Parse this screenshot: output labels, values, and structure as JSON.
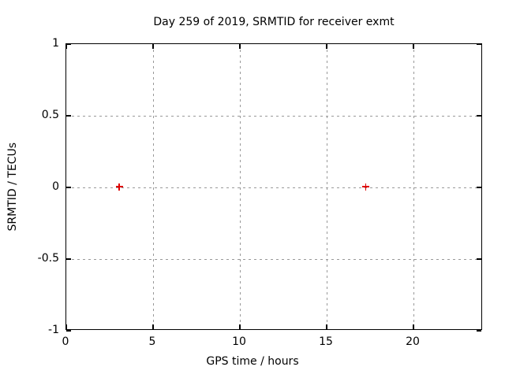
{
  "window": {
    "background": "#ffffff",
    "frame_color": "#000000",
    "grid_color": "#999999",
    "text_color": "#000000"
  },
  "chart_data": {
    "type": "scatter",
    "title": "Day 259 of 2019, SRMTID for receiver exmt",
    "xlabel": "GPS time / hours",
    "ylabel": "SRMTID / TECUs",
    "xlim": [
      0,
      24
    ],
    "ylim": [
      -1,
      1
    ],
    "xticks": [
      0,
      5,
      10,
      15,
      20
    ],
    "yticks": [
      -1,
      -0.5,
      0,
      0.5,
      1
    ],
    "grid": true,
    "grid_style": "dotted",
    "legend": "none",
    "series": [
      {
        "name": "SRMTID",
        "marker": "plus",
        "color": "#e00000",
        "points": [
          {
            "x": 3.1,
            "y": 0.0
          },
          {
            "x": 17.3,
            "y": 0.0
          }
        ]
      }
    ]
  }
}
